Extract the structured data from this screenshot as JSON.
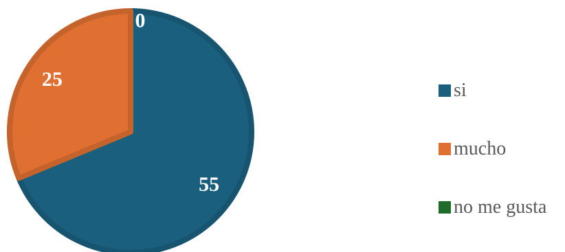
{
  "chart_data": {
    "type": "pie",
    "categories": [
      "si",
      "mucho",
      "no me gusta"
    ],
    "values": [
      55,
      25,
      0
    ],
    "colors": [
      "#1a5f7e",
      "#e07032",
      "#1e6b2a"
    ],
    "data_labels": [
      "55",
      "25",
      "0"
    ],
    "title": "",
    "legend_position": "right"
  },
  "legend": {
    "items": [
      {
        "label": "si",
        "color": "#1a5f7e"
      },
      {
        "label": "mucho",
        "color": "#e07032"
      },
      {
        "label": "no me gusta",
        "color": "#1e6b2a"
      }
    ]
  }
}
